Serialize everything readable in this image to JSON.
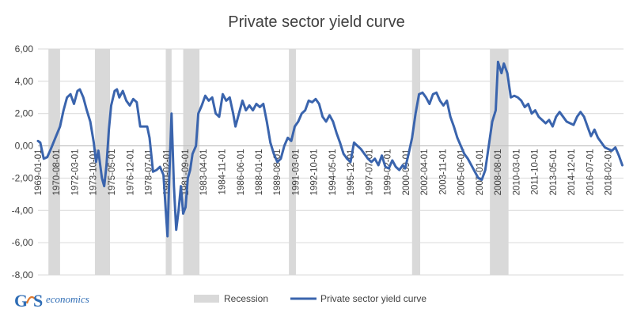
{
  "logo": {
    "initials_a": "G",
    "initials_b": "S",
    "text": "economics"
  },
  "chart_data": {
    "type": "line",
    "title": "Private sector yield curve",
    "xlabel": "",
    "ylabel": "",
    "ylim": [
      -8,
      6
    ],
    "yticks": [
      -8,
      -6,
      -4,
      -2,
      0,
      2,
      4,
      6
    ],
    "ytick_labels": [
      "-8,00",
      "-6,00",
      "-4,00",
      "-2,00",
      "0,00",
      "2,00",
      "4,00",
      "6,00"
    ],
    "xlim": [
      1969.0,
      2019.4
    ],
    "x_tick_labels": [
      {
        "label": "1969-01-01",
        "x": 1969.0
      },
      {
        "label": "1970-08-01",
        "x": 1970.58
      },
      {
        "label": "1972-03-01",
        "x": 1972.17
      },
      {
        "label": "1973-10-01",
        "x": 1973.75
      },
      {
        "label": "1975-05-01",
        "x": 1975.33
      },
      {
        "label": "1976-12-01",
        "x": 1976.92
      },
      {
        "label": "1978-07-01",
        "x": 1978.5
      },
      {
        "label": "1980-02-01",
        "x": 1980.08
      },
      {
        "label": "1981-09-01",
        "x": 1981.67
      },
      {
        "label": "1983-04-01",
        "x": 1983.25
      },
      {
        "label": "1984-11-01",
        "x": 1984.83
      },
      {
        "label": "1986-06-01",
        "x": 1986.42
      },
      {
        "label": "1988-01-01",
        "x": 1988.0
      },
      {
        "label": "1989-08-01",
        "x": 1989.58
      },
      {
        "label": "1991-03-01",
        "x": 1991.17
      },
      {
        "label": "1992-10-01",
        "x": 1992.75
      },
      {
        "label": "1994-05-01",
        "x": 1994.33
      },
      {
        "label": "1995-12-01",
        "x": 1995.92
      },
      {
        "label": "1997-07-01",
        "x": 1997.5
      },
      {
        "label": "1999-02-01",
        "x": 1999.08
      },
      {
        "label": "2000-09-01",
        "x": 2000.67
      },
      {
        "label": "2002-04-01",
        "x": 2002.25
      },
      {
        "label": "2003-11-01",
        "x": 2003.83
      },
      {
        "label": "2005-06-01",
        "x": 2005.42
      },
      {
        "label": "2007-01-01",
        "x": 2007.0
      },
      {
        "label": "2008-08-01",
        "x": 2008.58
      },
      {
        "label": "2010-03-01",
        "x": 2010.17
      },
      {
        "label": "2011-10-01",
        "x": 2011.75
      },
      {
        "label": "2013-05-01",
        "x": 2013.33
      },
      {
        "label": "2014-12-01",
        "x": 2014.92
      },
      {
        "label": "2016-07-01",
        "x": 2016.5
      },
      {
        "label": "2018-02-01",
        "x": 2018.08
      }
    ],
    "recessions": [
      {
        "start": 1969.9,
        "end": 1970.9
      },
      {
        "start": 1973.9,
        "end": 1975.2
      },
      {
        "start": 1980.0,
        "end": 1980.5
      },
      {
        "start": 1981.5,
        "end": 1982.9
      },
      {
        "start": 1990.6,
        "end": 1991.2
      },
      {
        "start": 2001.2,
        "end": 2001.9
      },
      {
        "start": 2007.9,
        "end": 2009.5
      }
    ],
    "series": [
      {
        "name": "Private sector yield curve",
        "color": "#3a64ad",
        "points": [
          [
            1969.0,
            0.3
          ],
          [
            1969.2,
            0.2
          ],
          [
            1969.5,
            -0.8
          ],
          [
            1969.8,
            -0.7
          ],
          [
            1970.1,
            -0.2
          ],
          [
            1970.5,
            0.5
          ],
          [
            1970.9,
            1.2
          ],
          [
            1971.2,
            2.2
          ],
          [
            1971.5,
            3.0
          ],
          [
            1971.8,
            3.2
          ],
          [
            1972.1,
            2.6
          ],
          [
            1972.4,
            3.4
          ],
          [
            1972.6,
            3.5
          ],
          [
            1972.9,
            3.0
          ],
          [
            1973.2,
            2.2
          ],
          [
            1973.5,
            1.5
          ],
          [
            1973.8,
            0.2
          ],
          [
            1974.0,
            -1.0
          ],
          [
            1974.2,
            -0.3
          ],
          [
            1974.5,
            -2.0
          ],
          [
            1974.7,
            -2.5
          ],
          [
            1974.9,
            -1.2
          ],
          [
            1975.1,
            1.0
          ],
          [
            1975.3,
            2.5
          ],
          [
            1975.6,
            3.4
          ],
          [
            1975.8,
            3.5
          ],
          [
            1976.0,
            3.0
          ],
          [
            1976.3,
            3.4
          ],
          [
            1976.6,
            2.8
          ],
          [
            1976.9,
            2.5
          ],
          [
            1977.2,
            2.9
          ],
          [
            1977.5,
            2.7
          ],
          [
            1977.8,
            1.2
          ],
          [
            1978.1,
            1.2
          ],
          [
            1978.4,
            1.2
          ],
          [
            1978.6,
            0.5
          ],
          [
            1978.9,
            -1.6
          ],
          [
            1979.2,
            -1.5
          ],
          [
            1979.5,
            -1.3
          ],
          [
            1979.8,
            -1.8
          ],
          [
            1980.0,
            -4.0
          ],
          [
            1980.15,
            -5.6
          ],
          [
            1980.3,
            -2.0
          ],
          [
            1980.5,
            2.0
          ],
          [
            1980.7,
            -2.5
          ],
          [
            1980.9,
            -5.2
          ],
          [
            1981.1,
            -4.0
          ],
          [
            1981.3,
            -2.5
          ],
          [
            1981.5,
            -4.2
          ],
          [
            1981.7,
            -3.8
          ],
          [
            1981.9,
            -2.0
          ],
          [
            1982.1,
            -1.5
          ],
          [
            1982.3,
            -0.5
          ],
          [
            1982.6,
            0.0
          ],
          [
            1982.8,
            2.0
          ],
          [
            1983.1,
            2.5
          ],
          [
            1983.4,
            3.1
          ],
          [
            1983.7,
            2.8
          ],
          [
            1984.0,
            3.0
          ],
          [
            1984.3,
            2.0
          ],
          [
            1984.6,
            1.8
          ],
          [
            1984.9,
            3.2
          ],
          [
            1985.2,
            2.8
          ],
          [
            1985.5,
            3.0
          ],
          [
            1985.8,
            2.0
          ],
          [
            1986.0,
            1.2
          ],
          [
            1986.3,
            2.0
          ],
          [
            1986.6,
            2.8
          ],
          [
            1986.9,
            2.2
          ],
          [
            1987.2,
            2.5
          ],
          [
            1987.5,
            2.2
          ],
          [
            1987.8,
            2.6
          ],
          [
            1988.1,
            2.4
          ],
          [
            1988.4,
            2.6
          ],
          [
            1988.7,
            1.5
          ],
          [
            1989.0,
            0.2
          ],
          [
            1989.3,
            -0.5
          ],
          [
            1989.6,
            -1.0
          ],
          [
            1989.9,
            -0.8
          ],
          [
            1990.2,
            0.0
          ],
          [
            1990.5,
            0.5
          ],
          [
            1990.8,
            0.3
          ],
          [
            1991.1,
            1.2
          ],
          [
            1991.4,
            1.5
          ],
          [
            1991.7,
            2.0
          ],
          [
            1992.0,
            2.2
          ],
          [
            1992.3,
            2.8
          ],
          [
            1992.6,
            2.7
          ],
          [
            1992.9,
            2.9
          ],
          [
            1993.2,
            2.6
          ],
          [
            1993.5,
            1.8
          ],
          [
            1993.8,
            1.5
          ],
          [
            1994.1,
            1.9
          ],
          [
            1994.4,
            1.5
          ],
          [
            1994.7,
            0.8
          ],
          [
            1995.0,
            0.2
          ],
          [
            1995.3,
            -0.5
          ],
          [
            1995.6,
            -0.8
          ],
          [
            1995.9,
            -1.0
          ],
          [
            1996.2,
            0.2
          ],
          [
            1996.5,
            0.0
          ],
          [
            1996.8,
            -0.2
          ],
          [
            1997.1,
            -0.5
          ],
          [
            1997.4,
            -0.8
          ],
          [
            1997.7,
            -1.0
          ],
          [
            1998.0,
            -0.8
          ],
          [
            1998.3,
            -1.2
          ],
          [
            1998.6,
            -0.6
          ],
          [
            1998.9,
            -1.3
          ],
          [
            1999.2,
            -1.4
          ],
          [
            1999.5,
            -0.9
          ],
          [
            1999.8,
            -1.3
          ],
          [
            2000.1,
            -1.5
          ],
          [
            2000.4,
            -1.2
          ],
          [
            2000.6,
            -1.4
          ],
          [
            2000.9,
            -0.5
          ],
          [
            2001.2,
            0.5
          ],
          [
            2001.5,
            2.0
          ],
          [
            2001.8,
            3.2
          ],
          [
            2002.1,
            3.3
          ],
          [
            2002.4,
            3.0
          ],
          [
            2002.7,
            2.6
          ],
          [
            2003.0,
            3.2
          ],
          [
            2003.3,
            3.3
          ],
          [
            2003.6,
            2.8
          ],
          [
            2003.9,
            2.5
          ],
          [
            2004.2,
            2.8
          ],
          [
            2004.5,
            1.8
          ],
          [
            2004.8,
            1.2
          ],
          [
            2005.1,
            0.5
          ],
          [
            2005.4,
            0.0
          ],
          [
            2005.7,
            -0.5
          ],
          [
            2006.0,
            -0.8
          ],
          [
            2006.3,
            -1.2
          ],
          [
            2006.6,
            -1.6
          ],
          [
            2006.9,
            -2.0
          ],
          [
            2007.2,
            -2.1
          ],
          [
            2007.5,
            -1.5
          ],
          [
            2007.8,
            0.0
          ],
          [
            2008.1,
            1.5
          ],
          [
            2008.4,
            2.2
          ],
          [
            2008.6,
            5.2
          ],
          [
            2008.9,
            4.5
          ],
          [
            2009.1,
            5.1
          ],
          [
            2009.4,
            4.5
          ],
          [
            2009.7,
            3.0
          ],
          [
            2010.0,
            3.1
          ],
          [
            2010.3,
            3.0
          ],
          [
            2010.6,
            2.8
          ],
          [
            2010.9,
            2.4
          ],
          [
            2011.2,
            2.6
          ],
          [
            2011.5,
            2.0
          ],
          [
            2011.8,
            2.2
          ],
          [
            2012.1,
            1.8
          ],
          [
            2012.4,
            1.6
          ],
          [
            2012.7,
            1.4
          ],
          [
            2013.0,
            1.6
          ],
          [
            2013.3,
            1.2
          ],
          [
            2013.6,
            1.8
          ],
          [
            2013.9,
            2.1
          ],
          [
            2014.2,
            1.8
          ],
          [
            2014.5,
            1.5
          ],
          [
            2014.8,
            1.4
          ],
          [
            2015.1,
            1.3
          ],
          [
            2015.4,
            1.8
          ],
          [
            2015.7,
            2.1
          ],
          [
            2016.0,
            1.8
          ],
          [
            2016.3,
            1.2
          ],
          [
            2016.6,
            0.6
          ],
          [
            2016.9,
            1.0
          ],
          [
            2017.2,
            0.5
          ],
          [
            2017.5,
            0.2
          ],
          [
            2017.8,
            -0.1
          ],
          [
            2018.1,
            -0.2
          ],
          [
            2018.4,
            -0.3
          ],
          [
            2018.7,
            -0.1
          ],
          [
            2019.0,
            -0.6
          ],
          [
            2019.3,
            -1.2
          ]
        ]
      }
    ],
    "legend": [
      {
        "label": "Recession",
        "kind": "area",
        "color": "#d9d9d9"
      },
      {
        "label": "Private sector yield curve",
        "kind": "line",
        "color": "#3a64ad"
      }
    ],
    "legend_position": "bottom",
    "grid": "horizontal",
    "recession_color": "#d9d9d9",
    "grid_color": "#d9d9d9",
    "axis_color": "#bfbfbf"
  }
}
